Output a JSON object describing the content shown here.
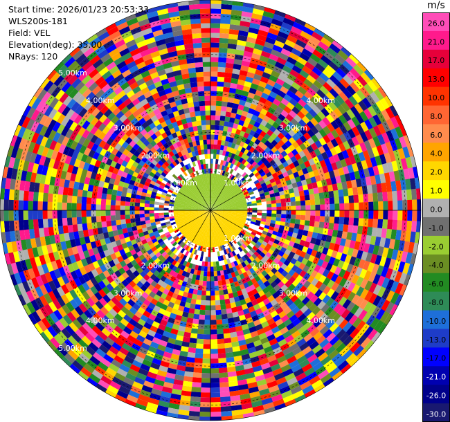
{
  "header": {
    "start_time": "Start time: 2026/01/23 20:53:33",
    "instrument": "WLS200s-181",
    "field": "Field: VEL",
    "elevation": "Elevation(deg): 35.00",
    "nrays": "NRays: 120"
  },
  "colorbar": {
    "unit": "m/s",
    "ticks": [
      "26.0",
      "21.0",
      "17.0",
      "13.0",
      "10.0",
      "8.0",
      "6.0",
      "4.0",
      "2.0",
      "1.0",
      "0.0",
      "-1.0",
      "-2.0",
      "-4.0",
      "-6.0",
      "-8.0",
      "-10.0",
      "-13.0",
      "-17.0",
      "-21.0",
      "-26.0",
      "-30.0"
    ],
    "colors": [
      "#ff4db8",
      "#ff1a8c",
      "#e6003a",
      "#ff0000",
      "#ff3300",
      "#ff6633",
      "#ff8c4d",
      "#ffa500",
      "#ffd700",
      "#ffff00",
      "#b0b0b0",
      "#707070",
      "#9acd32",
      "#6b8e23",
      "#228b22",
      "#2e8b57",
      "#1e6fd9",
      "#1e3cc8",
      "#0000ff",
      "#0000b0",
      "#00008b",
      "#191970"
    ]
  },
  "chart_data": {
    "type": "heatmap",
    "projection": "polar-ppi",
    "nrays": 120,
    "range_rings_km": [
      1,
      2,
      3,
      4,
      5
    ],
    "range_labels": [
      {
        "text": "1.00km",
        "range_km": 1,
        "azimuth_deg": 315
      },
      {
        "text": "1.00km",
        "range_km": 1,
        "azimuth_deg": 45
      },
      {
        "text": "1.00km",
        "range_km": 1,
        "azimuth_deg": 135
      },
      {
        "text": "2.00km",
        "range_km": 2,
        "azimuth_deg": 315
      },
      {
        "text": "2.00km",
        "range_km": 2,
        "azimuth_deg": 45
      },
      {
        "text": "2.00km",
        "range_km": 2,
        "azimuth_deg": 225
      },
      {
        "text": "2.00km",
        "range_km": 2,
        "azimuth_deg": 135
      },
      {
        "text": "3.00km",
        "range_km": 3,
        "azimuth_deg": 315
      },
      {
        "text": "3.00km",
        "range_km": 3,
        "azimuth_deg": 45
      },
      {
        "text": "3.00km",
        "range_km": 3,
        "azimuth_deg": 225
      },
      {
        "text": "3.00km",
        "range_km": 3,
        "azimuth_deg": 135
      },
      {
        "text": "4.00km",
        "range_km": 4,
        "azimuth_deg": 315
      },
      {
        "text": "4.00km",
        "range_km": 4,
        "azimuth_deg": 45
      },
      {
        "text": "4.00km",
        "range_km": 4,
        "azimuth_deg": 225
      },
      {
        "text": "4.00km",
        "range_km": 4,
        "azimuth_deg": 135
      },
      {
        "text": "5.00km",
        "range_km": 5,
        "azimuth_deg": 315
      },
      {
        "text": "5.00km",
        "range_km": 5,
        "azimuth_deg": 225
      }
    ],
    "max_range_km": 5.4,
    "near_field": {
      "north_half": "-2.0",
      "south_half": "2.0",
      "range_km": 0.95
    },
    "spokes_deg": [
      0,
      30,
      60,
      90,
      120,
      150,
      180,
      210,
      240,
      270,
      300,
      330
    ],
    "far_field": "mixed",
    "grid": true
  }
}
